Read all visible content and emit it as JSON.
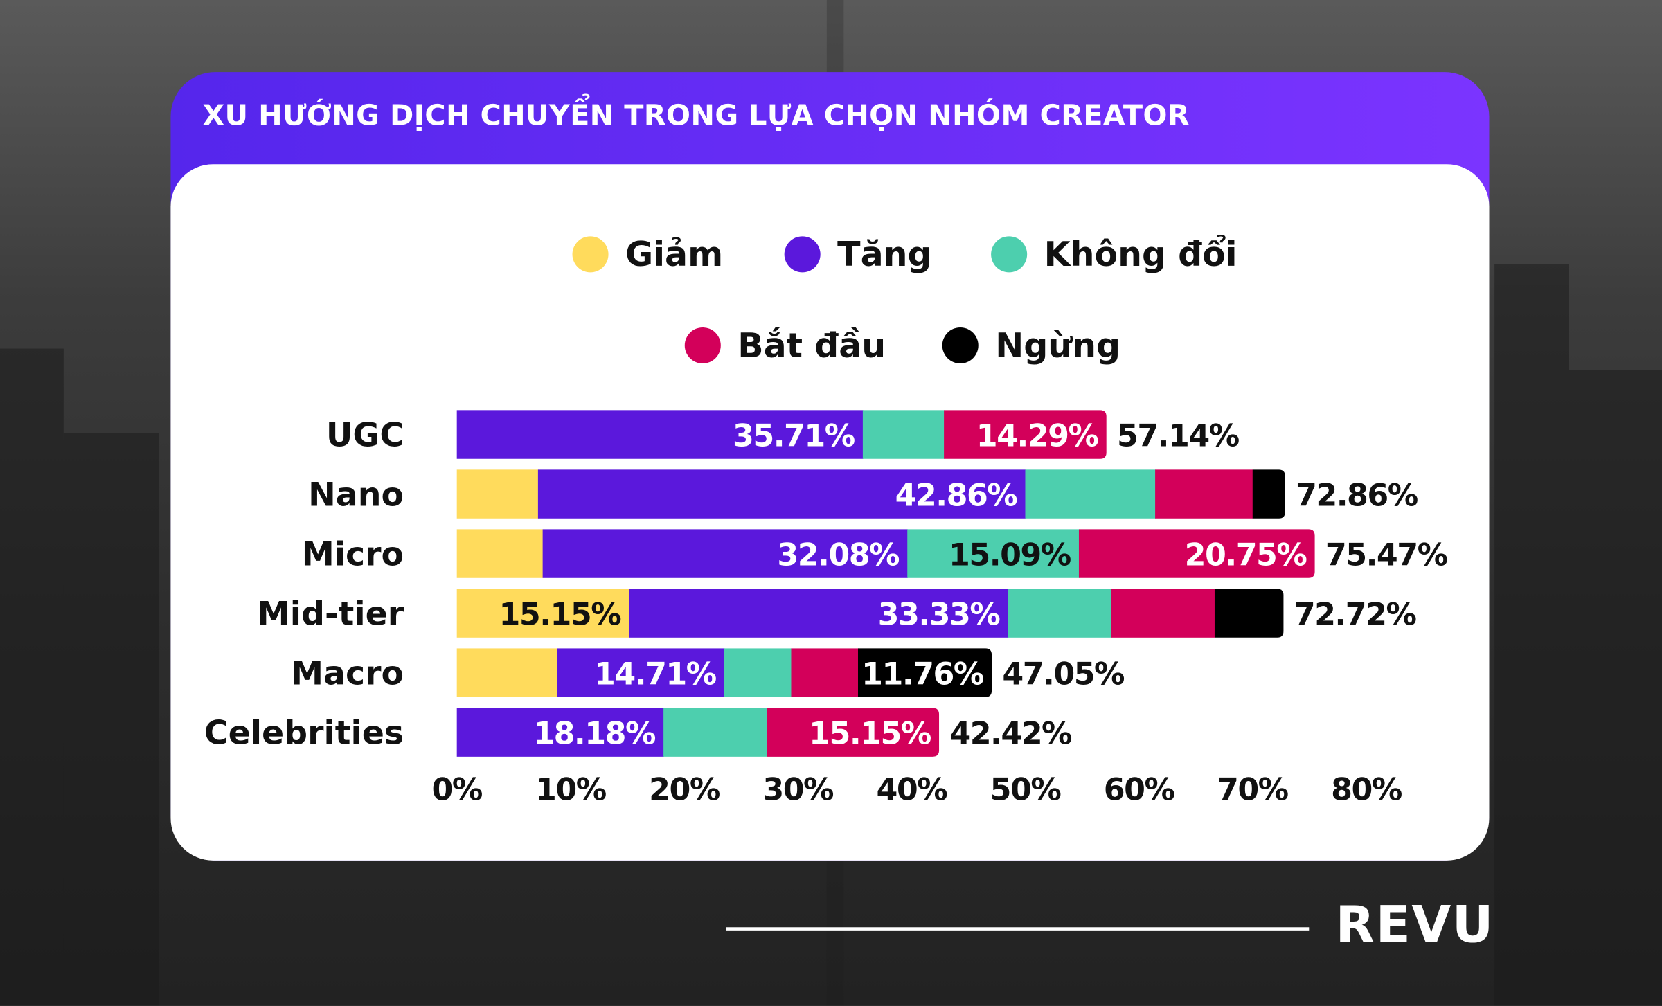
{
  "title": "XU HƯỚNG DỊCH CHUYỂN TRONG LỰA CHỌN NHÓM CREATOR",
  "brand": "REVU",
  "colors": {
    "header_start": "#5526ec",
    "header_end": "#7b34ff"
  },
  "chart_data": {
    "type": "bar",
    "orientation": "horizontal",
    "stacked": true,
    "title": "",
    "xlim": [
      0,
      80
    ],
    "x_ticks": [
      "0%",
      "10%",
      "20%",
      "30%",
      "40%",
      "50%",
      "60%",
      "70%",
      "80%"
    ],
    "grid": false,
    "legend_position": "top",
    "categories": [
      "UGC",
      "Nano",
      "Micro",
      "Mid-tier",
      "Macro",
      "Celebrities"
    ],
    "series": [
      {
        "name": "Giảm",
        "color": "#ffdb5c",
        "values": [
          0,
          7.14,
          7.55,
          15.15,
          8.82,
          0
        ],
        "labels": [
          "",
          "",
          "",
          "15.15%",
          "",
          ""
        ]
      },
      {
        "name": "Tăng",
        "color": "#5b18dc",
        "values": [
          35.71,
          42.86,
          32.08,
          33.33,
          14.71,
          18.18
        ],
        "labels": [
          "35.71%",
          "42.86%",
          "32.08%",
          "33.33%",
          "14.71%",
          "18.18%"
        ]
      },
      {
        "name": "Không đổi",
        "color": "#4dcfae",
        "values": [
          7.14,
          11.43,
          15.09,
          9.09,
          5.88,
          9.09
        ],
        "labels": [
          "",
          "",
          "15.09%",
          "",
          "",
          ""
        ]
      },
      {
        "name": "Bắt đầu",
        "color": "#d3005a",
        "values": [
          14.29,
          8.57,
          20.75,
          9.09,
          5.88,
          15.15
        ],
        "labels": [
          "14.29%",
          "",
          "20.75%",
          "",
          "",
          "15.15%"
        ]
      },
      {
        "name": "Ngừng",
        "color": "#000000",
        "values": [
          0,
          2.86,
          0,
          6.06,
          11.76,
          0
        ],
        "labels": [
          "",
          "",
          "",
          "",
          "11.76%",
          ""
        ]
      }
    ],
    "totals": [
      "57.14%",
      "72.86%",
      "75.47%",
      "72.72%",
      "47.05%",
      "42.42%"
    ]
  }
}
